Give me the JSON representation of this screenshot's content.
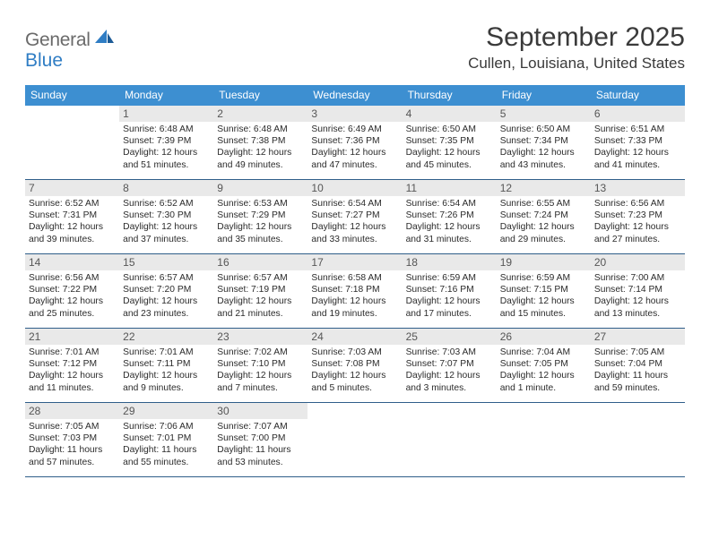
{
  "branding": {
    "word1": "General",
    "word2": "Blue",
    "text_color": "#6a6a6a",
    "accent_color": "#2f7dc4"
  },
  "title": {
    "month_year": "September 2025",
    "location": "Cullen, Louisiana, United States"
  },
  "colors": {
    "header_bg": "#3d8fd1",
    "header_text": "#ffffff",
    "daynum_bg": "#e9e9e9",
    "daynum_text": "#565656",
    "week_border": "#2f5e8a",
    "body_text": "#2b2b2b"
  },
  "days_of_week": [
    "Sunday",
    "Monday",
    "Tuesday",
    "Wednesday",
    "Thursday",
    "Friday",
    "Saturday"
  ],
  "weeks": [
    [
      null,
      {
        "n": "1",
        "sr": "6:48 AM",
        "ss": "7:39 PM",
        "dl": "12 hours and 51 minutes."
      },
      {
        "n": "2",
        "sr": "6:48 AM",
        "ss": "7:38 PM",
        "dl": "12 hours and 49 minutes."
      },
      {
        "n": "3",
        "sr": "6:49 AM",
        "ss": "7:36 PM",
        "dl": "12 hours and 47 minutes."
      },
      {
        "n": "4",
        "sr": "6:50 AM",
        "ss": "7:35 PM",
        "dl": "12 hours and 45 minutes."
      },
      {
        "n": "5",
        "sr": "6:50 AM",
        "ss": "7:34 PM",
        "dl": "12 hours and 43 minutes."
      },
      {
        "n": "6",
        "sr": "6:51 AM",
        "ss": "7:33 PM",
        "dl": "12 hours and 41 minutes."
      }
    ],
    [
      {
        "n": "7",
        "sr": "6:52 AM",
        "ss": "7:31 PM",
        "dl": "12 hours and 39 minutes."
      },
      {
        "n": "8",
        "sr": "6:52 AM",
        "ss": "7:30 PM",
        "dl": "12 hours and 37 minutes."
      },
      {
        "n": "9",
        "sr": "6:53 AM",
        "ss": "7:29 PM",
        "dl": "12 hours and 35 minutes."
      },
      {
        "n": "10",
        "sr": "6:54 AM",
        "ss": "7:27 PM",
        "dl": "12 hours and 33 minutes."
      },
      {
        "n": "11",
        "sr": "6:54 AM",
        "ss": "7:26 PM",
        "dl": "12 hours and 31 minutes."
      },
      {
        "n": "12",
        "sr": "6:55 AM",
        "ss": "7:24 PM",
        "dl": "12 hours and 29 minutes."
      },
      {
        "n": "13",
        "sr": "6:56 AM",
        "ss": "7:23 PM",
        "dl": "12 hours and 27 minutes."
      }
    ],
    [
      {
        "n": "14",
        "sr": "6:56 AM",
        "ss": "7:22 PM",
        "dl": "12 hours and 25 minutes."
      },
      {
        "n": "15",
        "sr": "6:57 AM",
        "ss": "7:20 PM",
        "dl": "12 hours and 23 minutes."
      },
      {
        "n": "16",
        "sr": "6:57 AM",
        "ss": "7:19 PM",
        "dl": "12 hours and 21 minutes."
      },
      {
        "n": "17",
        "sr": "6:58 AM",
        "ss": "7:18 PM",
        "dl": "12 hours and 19 minutes."
      },
      {
        "n": "18",
        "sr": "6:59 AM",
        "ss": "7:16 PM",
        "dl": "12 hours and 17 minutes."
      },
      {
        "n": "19",
        "sr": "6:59 AM",
        "ss": "7:15 PM",
        "dl": "12 hours and 15 minutes."
      },
      {
        "n": "20",
        "sr": "7:00 AM",
        "ss": "7:14 PM",
        "dl": "12 hours and 13 minutes."
      }
    ],
    [
      {
        "n": "21",
        "sr": "7:01 AM",
        "ss": "7:12 PM",
        "dl": "12 hours and 11 minutes."
      },
      {
        "n": "22",
        "sr": "7:01 AM",
        "ss": "7:11 PM",
        "dl": "12 hours and 9 minutes."
      },
      {
        "n": "23",
        "sr": "7:02 AM",
        "ss": "7:10 PM",
        "dl": "12 hours and 7 minutes."
      },
      {
        "n": "24",
        "sr": "7:03 AM",
        "ss": "7:08 PM",
        "dl": "12 hours and 5 minutes."
      },
      {
        "n": "25",
        "sr": "7:03 AM",
        "ss": "7:07 PM",
        "dl": "12 hours and 3 minutes."
      },
      {
        "n": "26",
        "sr": "7:04 AM",
        "ss": "7:05 PM",
        "dl": "12 hours and 1 minute."
      },
      {
        "n": "27",
        "sr": "7:05 AM",
        "ss": "7:04 PM",
        "dl": "11 hours and 59 minutes."
      }
    ],
    [
      {
        "n": "28",
        "sr": "7:05 AM",
        "ss": "7:03 PM",
        "dl": "11 hours and 57 minutes."
      },
      {
        "n": "29",
        "sr": "7:06 AM",
        "ss": "7:01 PM",
        "dl": "11 hours and 55 minutes."
      },
      {
        "n": "30",
        "sr": "7:07 AM",
        "ss": "7:00 PM",
        "dl": "11 hours and 53 minutes."
      },
      null,
      null,
      null,
      null
    ]
  ],
  "labels": {
    "sunrise": "Sunrise:",
    "sunset": "Sunset:",
    "daylight": "Daylight:"
  }
}
